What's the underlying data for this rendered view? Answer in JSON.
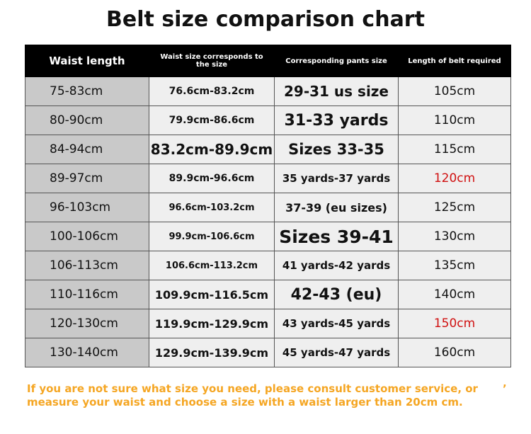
{
  "header": {
    "title": "Belt size comparison chart"
  },
  "table": {
    "columns": [
      "Waist length",
      "Waist size corresponds to the size",
      "Corresponding pants size",
      "Length of belt required"
    ],
    "rows": [
      [
        "75-83cm",
        "76.6cm-83.2cm",
        "29-31 us size",
        "105cm"
      ],
      [
        "80-90cm",
        "79.9cm-86.6cm",
        "31-33 yards",
        "110cm"
      ],
      [
        "84-94cm",
        "83.2cm-89.9cm",
        "Sizes 33-35",
        "115cm"
      ],
      [
        "89-97cm",
        "89.9cm-96.6cm",
        "35 yards-37 yards",
        "120cm"
      ],
      [
        "96-103cm",
        "96.6cm-103.2cm",
        "37-39 (eu sizes)",
        "125cm"
      ],
      [
        "100-106cm",
        "99.9cm-106.6cm",
        "Sizes 39-41",
        "130cm"
      ],
      [
        "106-113cm",
        "106.6cm-113.2cm",
        "41 yards-42 yards",
        "135cm"
      ],
      [
        "110-116cm",
        "109.9cm-116.5cm",
        "42-43 (eu)",
        "140cm"
      ],
      [
        "120-130cm",
        "119.9cm-129.9cm",
        "43 yards-45 yards",
        "150cm"
      ],
      [
        "130-140cm",
        "129.9cm-139.9cm",
        "45 yards-47 yards",
        "160cm"
      ]
    ]
  },
  "footer": {
    "lines": [
      "If you are not sure what size you need, please consult customer service, or",
      "measure your waist and choose a size with a waist larger than 20cm cm."
    ],
    "mark": "’"
  }
}
